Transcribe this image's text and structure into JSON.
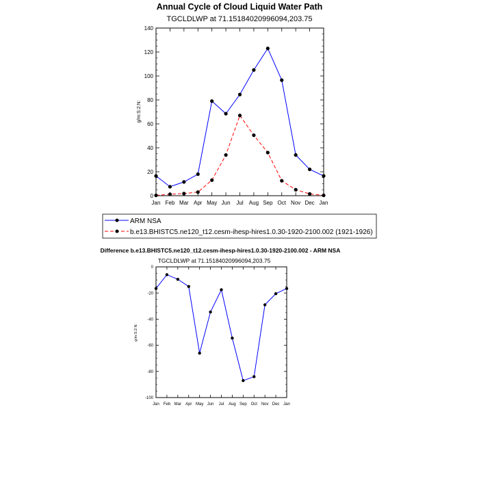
{
  "chart_data": [
    {
      "type": "line",
      "title": "Annual Cycle of Cloud Liquid Water Path",
      "subtitle": "TGCLDLWP at 71.15184020996094,203.75",
      "ylabel": "g/m:S:2:N:",
      "xlabel": "",
      "categories": [
        "Jan",
        "Feb",
        "Mar",
        "Apr",
        "May",
        "Jun",
        "Jul",
        "Aug",
        "Sep",
        "Oct",
        "Nov",
        "Dec",
        "Jan"
      ],
      "ylim": [
        0,
        140
      ],
      "yticks": [
        "0",
        "20",
        "40",
        "60",
        "80",
        "100",
        "120",
        "140"
      ],
      "series": [
        {
          "name": "ARM NSA",
          "color": "#0000ff",
          "dash": "solid",
          "values": [
            16.5,
            7.5,
            11.5,
            18,
            79,
            68.5,
            84.5,
            105,
            123,
            96.5,
            34,
            22,
            16.5
          ]
        },
        {
          "name": "b.e13.BHISTC5.ne120_t12.cesm-ihesp-hires1.0.30-1920-2100.002 (1921-1926)",
          "color": "#ff0000",
          "dash": "dashed",
          "values": [
            0.3,
            1.2,
            1.8,
            3,
            13,
            34,
            67,
            50.5,
            36,
            12.5,
            5,
            1.5,
            0.3
          ]
        }
      ]
    },
    {
      "type": "line",
      "title": "Difference b.e13.BHISTC5.ne120_t12.cesm-ihesp-hires1.0.30-1920-2100.002 - ARM NSA",
      "subtitle": "TGCLDLWP at 71.15184020996094,203.75",
      "ylabel": "g/m:S:2:N:",
      "xlabel": "",
      "categories": [
        "Jan",
        "Feb",
        "Mar",
        "Apr",
        "May",
        "Jun",
        "Jul",
        "Aug",
        "Sep",
        "Oct",
        "Nov",
        "Dec",
        "Jan"
      ],
      "ylim": [
        -100,
        0
      ],
      "yticks": [
        "-100",
        "-80",
        "-60",
        "-40",
        "-20",
        "0"
      ],
      "series": [
        {
          "name": "Difference",
          "color": "#0000ff",
          "dash": "solid",
          "values": [
            -16.5,
            -6,
            -9.5,
            -15,
            -66,
            -34.5,
            -17.5,
            -54.5,
            -87,
            -84,
            -29,
            -20.5,
            -16.5
          ]
        }
      ]
    }
  ]
}
